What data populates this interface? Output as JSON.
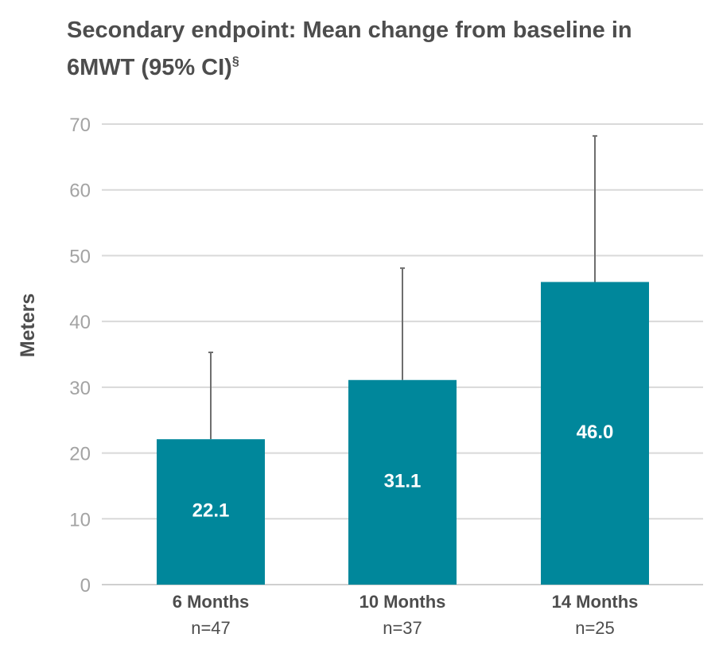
{
  "chart_data": {
    "type": "bar",
    "title_line1": "Secondary endpoint: Mean change from baseline in",
    "title_line2": "6MWT (95% CI)",
    "title_superscript": "§",
    "ylabel": "Meters",
    "xlabel": "",
    "ylim": [
      0,
      70
    ],
    "yticks": [
      0,
      10,
      20,
      30,
      40,
      50,
      60,
      70
    ],
    "grid": true,
    "legend": "none",
    "bar_color": "#00879b",
    "categories": [
      "6 Months",
      "10 Months",
      "14 Months"
    ],
    "sample_sizes": [
      "n=47",
      "n=37",
      "n=25"
    ],
    "values": [
      22.1,
      31.1,
      46.0
    ],
    "value_labels": [
      "22.1",
      "31.1",
      "46.0"
    ],
    "ci_upper": [
      35.3,
      48.1,
      68.2
    ]
  }
}
